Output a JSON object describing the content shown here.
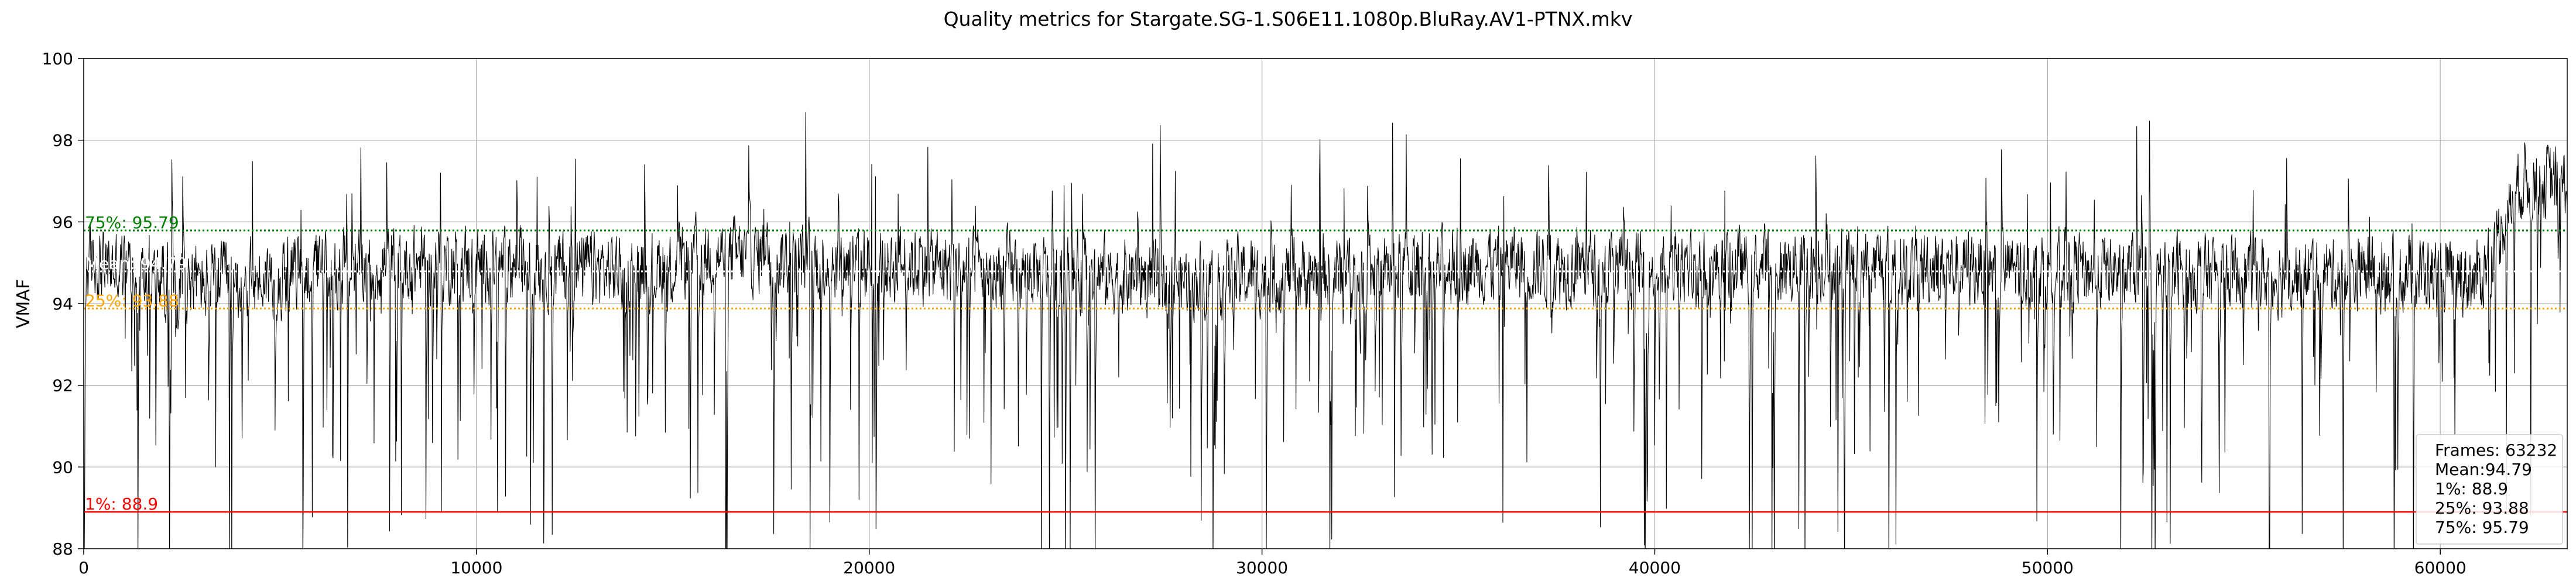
{
  "chart_data": {
    "type": "line",
    "title": "Quality metrics for Stargate.SG-1.S06E11.1080p.BluRay.AV1-PTNX.mkv",
    "xlabel": "",
    "ylabel": "VMAF",
    "xlim": [
      0,
      63232
    ],
    "ylim": [
      88,
      100
    ],
    "x_ticks": [
      0,
      10000,
      20000,
      30000,
      40000,
      50000,
      60000
    ],
    "y_ticks": [
      88,
      90,
      92,
      94,
      96,
      98,
      100
    ],
    "grid": true,
    "series": [
      {
        "color": "#000000",
        "frames": 63232,
        "band_center": [
          [
            0,
            95.0
          ],
          [
            1500,
            94.8
          ],
          [
            3000,
            94.5
          ],
          [
            4500,
            94.6
          ],
          [
            6000,
            94.9
          ],
          [
            9000,
            95.0
          ],
          [
            12000,
            94.9
          ],
          [
            14000,
            94.8
          ],
          [
            16000,
            95.2
          ],
          [
            20000,
            95.0
          ],
          [
            24000,
            94.8
          ],
          [
            28000,
            94.6
          ],
          [
            32000,
            94.8
          ],
          [
            36000,
            95.0
          ],
          [
            40000,
            94.8
          ],
          [
            44000,
            95.0
          ],
          [
            48000,
            94.9
          ],
          [
            52000,
            94.8
          ],
          [
            56000,
            94.7
          ],
          [
            59000,
            94.8
          ],
          [
            61000,
            94.6
          ],
          [
            62000,
            97.0
          ],
          [
            63232,
            97.0
          ]
        ]
      }
    ],
    "reference_lines": [
      {
        "label": "75%: 95.79",
        "value": 95.79,
        "color": "#008000",
        "style": "dotted"
      },
      {
        "label": "Mean: 94.79",
        "value": 94.79,
        "color": "#ffffff",
        "style": "dotted"
      },
      {
        "label": "25%: 93.88",
        "value": 93.88,
        "color": "#ffa500",
        "style": "dotted"
      },
      {
        "label": "1%: 88.9",
        "value": 88.9,
        "color": "#ff0000",
        "style": "solid"
      }
    ],
    "stats_box": {
      "placement": "bottom-right",
      "lines": [
        "Frames: 63232",
        "Mean:94.79",
        "1%: 88.9",
        "25%: 93.88",
        "75%: 95.79"
      ]
    }
  }
}
